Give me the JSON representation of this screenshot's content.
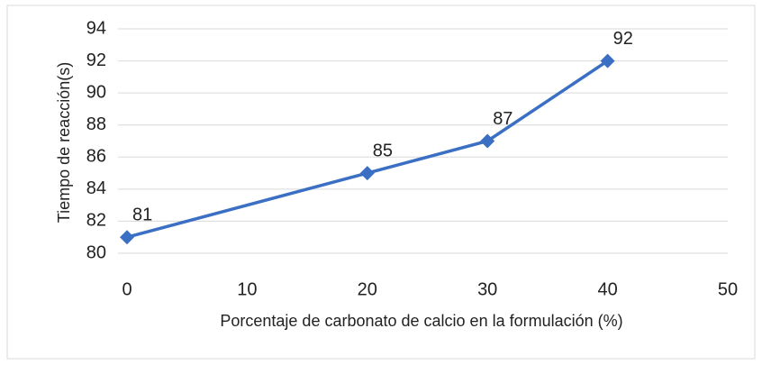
{
  "chart_data": {
    "type": "line",
    "x_label": "Porcentaje de carbonato de calcio en la formulación (%)",
    "y_label": "Tiempo de reacción(s)",
    "x": [
      0,
      20,
      30,
      40
    ],
    "values": [
      81,
      85,
      87,
      92
    ],
    "color": "#3a6fc4",
    "xlim": [
      0,
      50
    ],
    "xticks": [
      0,
      10,
      20,
      30,
      40,
      50
    ],
    "ylim": [
      80,
      94
    ],
    "yticks": [
      80,
      82,
      84,
      86,
      88,
      90,
      92,
      94
    ],
    "grid": true,
    "data_labels": true
  }
}
